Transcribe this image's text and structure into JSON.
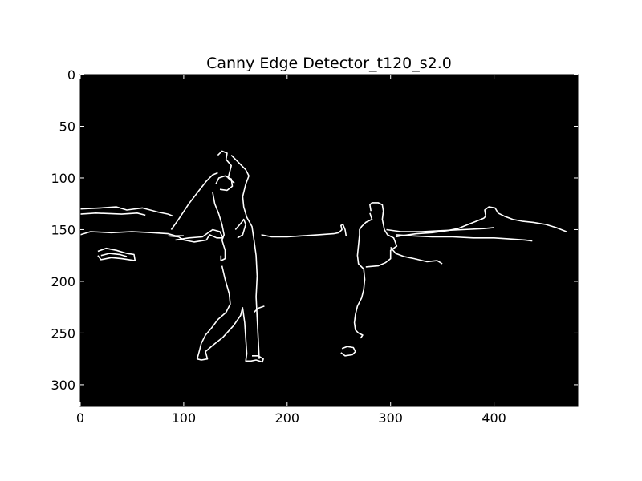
{
  "chart_data": {
    "type": "image",
    "title": "Canny Edge Detector_t120_s2.0",
    "xlabel": "",
    "ylabel": "",
    "xlim": [
      0,
      481
    ],
    "ylim": [
      321,
      0
    ],
    "x_ticks": [
      0,
      100,
      200,
      300,
      400
    ],
    "y_ticks": [
      0,
      50,
      100,
      150,
      200,
      250,
      300
    ],
    "grid": false,
    "colors": {
      "background": "#000000",
      "edges": "#ffffff",
      "page": "#ffffff"
    },
    "edge_paths": [
      {
        "name": "left-horizon",
        "points": [
          [
            0,
            130
          ],
          [
            20,
            129
          ],
          [
            35,
            128
          ],
          [
            45,
            131
          ],
          [
            60,
            129
          ],
          [
            75,
            133
          ],
          [
            85,
            135
          ],
          [
            90,
            137
          ]
        ]
      },
      {
        "name": "left-horizon-lower",
        "points": [
          [
            0,
            135
          ],
          [
            15,
            134
          ],
          [
            40,
            135
          ],
          [
            55,
            134
          ],
          [
            63,
            136
          ]
        ]
      },
      {
        "name": "left-far-shore",
        "points": [
          [
            0,
            155
          ],
          [
            10,
            152
          ],
          [
            30,
            153
          ],
          [
            50,
            152
          ],
          [
            70,
            153
          ],
          [
            85,
            154
          ],
          [
            92,
            156
          ],
          [
            100,
            156
          ]
        ]
      },
      {
        "name": "left-rocks",
        "points": [
          [
            17,
            171
          ],
          [
            25,
            168
          ],
          [
            35,
            170
          ],
          [
            45,
            173
          ],
          [
            52,
            174
          ],
          [
            53,
            180
          ],
          [
            40,
            178
          ],
          [
            30,
            177
          ],
          [
            20,
            179
          ],
          [
            17,
            175
          ]
        ]
      },
      {
        "name": "left-rocks-inner",
        "points": [
          [
            20,
            175
          ],
          [
            28,
            173
          ],
          [
            38,
            174
          ],
          [
            45,
            176
          ]
        ]
      },
      {
        "name": "golfer-arm-club",
        "points": [
          [
            88,
            150
          ],
          [
            95,
            140
          ],
          [
            105,
            125
          ],
          [
            115,
            112
          ],
          [
            122,
            103
          ],
          [
            128,
            97
          ],
          [
            133,
            95
          ]
        ]
      },
      {
        "name": "golfer-head",
        "points": [
          [
            131,
            106
          ],
          [
            134,
            100
          ],
          [
            140,
            98
          ],
          [
            146,
            101
          ],
          [
            147,
            108
          ],
          [
            142,
            112
          ],
          [
            135,
            111
          ]
        ]
      },
      {
        "name": "golfer-hands",
        "points": [
          [
            133,
            78
          ],
          [
            137,
            74
          ],
          [
            142,
            76
          ],
          [
            141,
            82
          ],
          [
            146,
            88
          ],
          [
            143,
            100
          ],
          [
            149,
            105
          ]
        ]
      },
      {
        "name": "golfer-back",
        "points": [
          [
            146,
            78
          ],
          [
            153,
            85
          ],
          [
            160,
            92
          ],
          [
            163,
            98
          ],
          [
            160,
            106
          ],
          [
            157,
            118
          ],
          [
            158,
            128
          ],
          [
            161,
            138
          ],
          [
            166,
            147
          ],
          [
            168,
            160
          ],
          [
            170,
            175
          ],
          [
            171,
            195
          ],
          [
            170,
            215
          ],
          [
            171,
            235
          ],
          [
            172,
            255
          ],
          [
            173,
            275
          ]
        ]
      },
      {
        "name": "golfer-arm-right",
        "points": [
          [
            150,
            150
          ],
          [
            156,
            143
          ],
          [
            158,
            140
          ],
          [
            160,
            145
          ],
          [
            157,
            155
          ],
          [
            152,
            158
          ]
        ]
      },
      {
        "name": "golfer-front-body",
        "points": [
          [
            128,
            114
          ],
          [
            130,
            125
          ],
          [
            134,
            135
          ],
          [
            137,
            145
          ],
          [
            139,
            155
          ],
          [
            137,
            160
          ],
          [
            140,
            170
          ],
          [
            140,
            178
          ],
          [
            136,
            180
          ],
          [
            136,
            175
          ]
        ]
      },
      {
        "name": "golfer-front-leg",
        "points": [
          [
            137,
            185
          ],
          [
            140,
            198
          ],
          [
            144,
            212
          ],
          [
            145,
            222
          ],
          [
            141,
            230
          ],
          [
            133,
            237
          ],
          [
            127,
            245
          ],
          [
            121,
            252
          ],
          [
            117,
            260
          ],
          [
            115,
            268
          ],
          [
            113,
            275
          ],
          [
            117,
            276
          ],
          [
            123,
            275
          ],
          [
            121,
            268
          ],
          [
            128,
            262
          ],
          [
            138,
            254
          ],
          [
            148,
            243
          ],
          [
            155,
            233
          ],
          [
            157,
            225
          ]
        ]
      },
      {
        "name": "golfer-back-leg",
        "points": [
          [
            157,
            226
          ],
          [
            159,
            240
          ],
          [
            160,
            255
          ],
          [
            161,
            270
          ],
          [
            160,
            277
          ],
          [
            165,
            277
          ],
          [
            170,
            276
          ],
          [
            176,
            278
          ],
          [
            177,
            275
          ],
          [
            172,
            272
          ],
          [
            166,
            272
          ]
        ]
      },
      {
        "name": "golfer-club-end",
        "points": [
          [
            168,
            230
          ],
          [
            172,
            226
          ],
          [
            178,
            224
          ]
        ]
      },
      {
        "name": "golfer-waist",
        "points": [
          [
            85,
            156
          ],
          [
            95,
            157
          ],
          [
            100,
            160
          ],
          [
            110,
            162
          ],
          [
            122,
            160
          ],
          [
            125,
            155
          ],
          [
            132,
            158
          ],
          [
            138,
            158
          ],
          [
            135,
            152
          ],
          [
            128,
            150
          ],
          [
            118,
            157
          ],
          [
            105,
            158
          ],
          [
            92,
            160
          ]
        ]
      },
      {
        "name": "horizon-middle",
        "points": [
          [
            175,
            155
          ],
          [
            185,
            157
          ],
          [
            200,
            157
          ],
          [
            215,
            156
          ],
          [
            230,
            155
          ],
          [
            245,
            154
          ],
          [
            250,
            153
          ],
          [
            253,
            150
          ],
          [
            252,
            146
          ],
          [
            254,
            145
          ],
          [
            256,
            150
          ],
          [
            257,
            156
          ]
        ]
      },
      {
        "name": "child-head",
        "points": [
          [
            281,
            132
          ],
          [
            280,
            126
          ],
          [
            282,
            124
          ],
          [
            288,
            124
          ],
          [
            292,
            126
          ],
          [
            293,
            132
          ],
          [
            292,
            140
          ],
          [
            294,
            150
          ]
        ]
      },
      {
        "name": "child-shoulder",
        "points": [
          [
            280,
            134
          ],
          [
            282,
            140
          ],
          [
            276,
            143
          ],
          [
            272,
            147
          ],
          [
            270,
            150
          ],
          [
            270,
            155
          ],
          [
            269,
            165
          ],
          [
            268,
            175
          ],
          [
            269,
            183
          ],
          [
            274,
            188
          ],
          [
            275,
            198
          ],
          [
            274,
            208
          ],
          [
            272,
            216
          ],
          [
            268,
            224
          ],
          [
            266,
            232
          ],
          [
            265,
            240
          ],
          [
            266,
            247
          ],
          [
            269,
            250
          ],
          [
            273,
            252
          ],
          [
            271,
            255
          ]
        ]
      },
      {
        "name": "child-arm",
        "points": [
          [
            294,
            150
          ],
          [
            297,
            155
          ],
          [
            303,
            158
          ],
          [
            306,
            166
          ],
          [
            300,
            170
          ],
          [
            300,
            178
          ],
          [
            295,
            182
          ],
          [
            288,
            185
          ],
          [
            276,
            186
          ]
        ]
      },
      {
        "name": "child-right-arm",
        "points": [
          [
            296,
            150
          ],
          [
            310,
            152
          ],
          [
            330,
            152
          ],
          [
            350,
            151
          ],
          [
            370,
            150
          ],
          [
            390,
            149
          ],
          [
            400,
            148
          ]
        ]
      },
      {
        "name": "ball",
        "points": [
          [
            253,
            265
          ],
          [
            258,
            263
          ],
          [
            264,
            264
          ],
          [
            266,
            268
          ],
          [
            263,
            271
          ],
          [
            256,
            272
          ],
          [
            252,
            269
          ]
        ]
      },
      {
        "name": "right-horizon",
        "points": [
          [
            305,
            155
          ],
          [
            320,
            156
          ],
          [
            340,
            157
          ],
          [
            360,
            157
          ],
          [
            380,
            158
          ],
          [
            400,
            158
          ],
          [
            415,
            159
          ],
          [
            430,
            160
          ],
          [
            437,
            161
          ]
        ]
      },
      {
        "name": "right-hill",
        "points": [
          [
            305,
            157
          ],
          [
            310,
            156
          ],
          [
            325,
            154
          ],
          [
            340,
            153
          ],
          [
            355,
            151
          ],
          [
            365,
            149
          ],
          [
            375,
            145
          ],
          [
            385,
            141
          ],
          [
            390,
            139
          ],
          [
            392,
            137
          ],
          [
            391,
            131
          ],
          [
            395,
            128
          ],
          [
            401,
            129
          ],
          [
            404,
            134
          ],
          [
            410,
            137
          ],
          [
            418,
            140
          ],
          [
            428,
            142
          ],
          [
            438,
            143
          ],
          [
            450,
            145
          ],
          [
            460,
            148
          ],
          [
            470,
            152
          ]
        ]
      },
      {
        "name": "right-rocks",
        "points": [
          [
            300,
            167
          ],
          [
            305,
            173
          ],
          [
            313,
            176
          ],
          [
            323,
            178
          ],
          [
            335,
            181
          ],
          [
            345,
            180
          ],
          [
            350,
            183
          ]
        ]
      }
    ]
  }
}
